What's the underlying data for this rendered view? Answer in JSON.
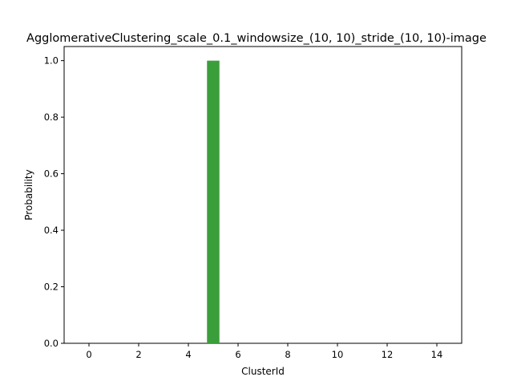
{
  "chart_data": {
    "type": "bar",
    "title": "AgglomerativeClustering_scale_0.1_windowsize_(10, 10)_stride_(10, 10)-image",
    "xlabel": "ClusterId",
    "ylabel": "Probability",
    "bar_color": "#3a9e3a",
    "bar_width": 0.5,
    "xlim": [
      -1,
      15
    ],
    "ylim": [
      0,
      1.05
    ],
    "xticks": [
      0,
      2,
      4,
      6,
      8,
      10,
      12,
      14
    ],
    "xtick_labels": [
      "0",
      "2",
      "4",
      "6",
      "8",
      "10",
      "12",
      "14"
    ],
    "yticks": [
      0.0,
      0.2,
      0.4,
      0.6,
      0.8,
      1.0
    ],
    "ytick_labels": [
      "0.0",
      "0.2",
      "0.4",
      "0.6",
      "0.8",
      "1.0"
    ],
    "x": [
      5
    ],
    "values": [
      1.0
    ],
    "grid": false,
    "legend": "none"
  }
}
